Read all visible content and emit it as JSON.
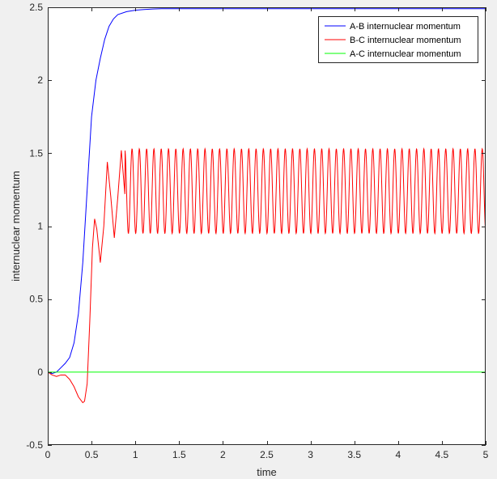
{
  "chart_data": {
    "type": "line",
    "title": "",
    "xlabel": "time",
    "ylabel": "internuclear momentum",
    "xlim": [
      0,
      5
    ],
    "ylim": [
      -0.5,
      2.5
    ],
    "xticks": [
      0,
      0.5,
      1,
      1.5,
      2,
      2.5,
      3,
      3.5,
      4,
      4.5,
      5
    ],
    "xtick_labels": [
      "0",
      "0.5",
      "1",
      "1.5",
      "2",
      "2.5",
      "3",
      "3.5",
      "4",
      "4.5",
      "5"
    ],
    "yticks": [
      -0.5,
      0,
      0.5,
      1,
      1.5,
      2,
      2.5
    ],
    "ytick_labels": [
      "-0.5",
      "0",
      "0.5",
      "1",
      "1.5",
      "2",
      "2.5"
    ],
    "grid": false,
    "legend_position": "top-right",
    "series": [
      {
        "name": "A-B internuclear momentum",
        "color": "#0000ff",
        "x": [
          0,
          0.05,
          0.1,
          0.15,
          0.2,
          0.25,
          0.3,
          0.35,
          0.4,
          0.45,
          0.5,
          0.55,
          0.6,
          0.65,
          0.7,
          0.75,
          0.8,
          0.9,
          1.0,
          1.1,
          1.2,
          1.3,
          1.4,
          1.6,
          2.0,
          3.0,
          4.0,
          5.0
        ],
        "y": [
          0,
          -0.01,
          0.0,
          0.03,
          0.06,
          0.1,
          0.2,
          0.4,
          0.75,
          1.25,
          1.75,
          2.0,
          2.15,
          2.28,
          2.37,
          2.42,
          2.45,
          2.47,
          2.48,
          2.485,
          2.488,
          2.49,
          2.49,
          2.49,
          2.49,
          2.49,
          2.49,
          2.49
        ]
      },
      {
        "name": "B-C internuclear momentum",
        "color": "#ff0000",
        "x": [
          0,
          0.05,
          0.1,
          0.15,
          0.2,
          0.25,
          0.3,
          0.35,
          0.4,
          0.42,
          0.45,
          0.48,
          0.51,
          0.535,
          0.56,
          0.6,
          0.64,
          0.68,
          0.72,
          0.76,
          0.8,
          0.84,
          0.88
        ],
        "y": [
          0,
          -0.02,
          -0.03,
          -0.02,
          -0.02,
          -0.05,
          -0.1,
          -0.17,
          -0.21,
          -0.2,
          -0.08,
          0.35,
          0.85,
          1.05,
          0.98,
          0.75,
          1.0,
          1.44,
          1.2,
          0.92,
          1.2,
          1.52,
          1.22
        ],
        "oscillation": {
          "x_start": 0.88,
          "x_end": 5.0,
          "period": 0.0833,
          "min": 0.95,
          "max": 1.53
        }
      },
      {
        "name": "A-C internuclear momentum",
        "color": "#00ff00",
        "x": [
          0,
          5
        ],
        "y": [
          0,
          0
        ]
      }
    ]
  }
}
